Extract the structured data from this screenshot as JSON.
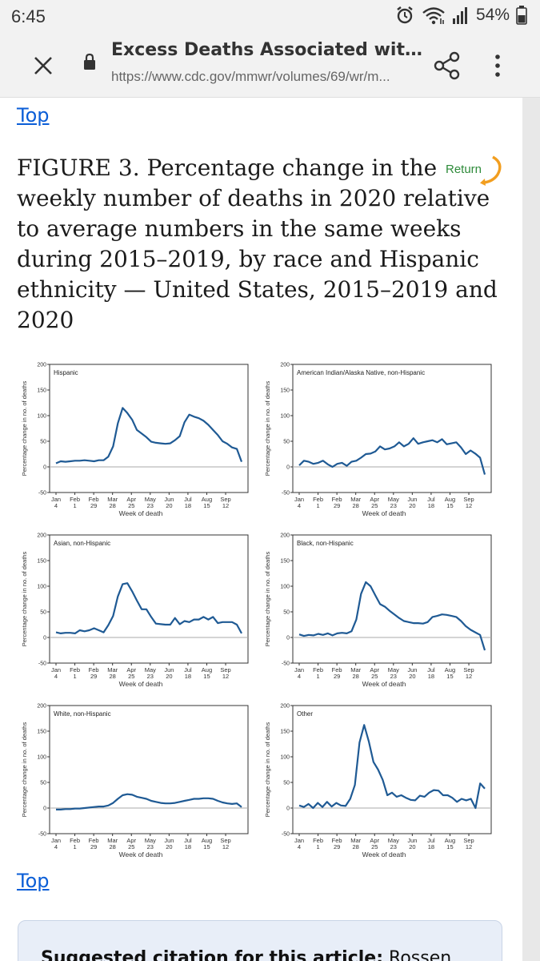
{
  "status_bar": {
    "time": "6:45",
    "battery": "54%",
    "icons": [
      "alarm-icon",
      "wifi-icon",
      "signal-icon",
      "battery-icon"
    ]
  },
  "browser": {
    "page_title": "Excess Deaths Associated with C...",
    "url": "https://www.cdc.gov/mmwr/volumes/69/wr/m...",
    "icons": [
      "close-icon",
      "lock-icon",
      "share-icon",
      "more-vert-icon"
    ]
  },
  "article": {
    "top_link": "Top",
    "bottom_top_link": "Top",
    "figure_title": "FIGURE 3. Percentage change in the weekly number of deaths in 2020 relative to average numbers in the same weeks during 2015–2019, by race and Hispanic ethnicity — United States, 2015–2019 and 2020",
    "return_label": "Return",
    "citation_label": "Suggested citation for this article:",
    "citation_text": " Rossen"
  },
  "colors": {
    "line": "#1f5a94",
    "link": "#0b5ed7",
    "return_green": "#2e8b3a",
    "return_orange": "#f29e1f"
  },
  "chart_data": [
    {
      "type": "line",
      "panel_label": "Hispanic",
      "ylabel": "Percentage change in no. of deaths",
      "xlabel": "Week of death",
      "ylim": [
        -50,
        200
      ],
      "yticks": [
        "200",
        "150",
        "100",
        "50",
        "0",
        "-50"
      ],
      "xticks": [
        [
          "Jan",
          "4"
        ],
        [
          "Feb",
          "1"
        ],
        [
          "Feb",
          "29"
        ],
        [
          "Mar",
          "28"
        ],
        [
          "Apr",
          "25"
        ],
        [
          "May",
          "23"
        ],
        [
          "Jun",
          "20"
        ],
        [
          "Jul",
          "18"
        ],
        [
          "Aug",
          "15"
        ],
        [
          "Sep",
          "12"
        ]
      ],
      "series": [
        {
          "values": [
            7,
            11,
            10,
            11,
            12,
            12,
            13,
            12,
            11,
            13,
            13,
            20,
            40,
            85,
            115,
            105,
            92,
            72,
            65,
            58,
            49,
            47,
            46,
            45,
            46,
            52,
            60,
            87,
            102,
            98,
            95,
            90,
            82,
            72,
            62,
            50,
            45,
            38,
            35,
            10
          ]
        }
      ]
    },
    {
      "type": "line",
      "panel_label": "American Indian/Alaska Native, non-Hispanic",
      "ylabel": "Percentage change in no. of deaths",
      "xlabel": "Week of death",
      "ylim": [
        -50,
        200
      ],
      "yticks": [
        "200",
        "150",
        "100",
        "50",
        "0",
        "-50"
      ],
      "xticks": [
        [
          "Jan",
          "4"
        ],
        [
          "Feb",
          "1"
        ],
        [
          "Feb",
          "29"
        ],
        [
          "Mar",
          "28"
        ],
        [
          "Apr",
          "25"
        ],
        [
          "May",
          "23"
        ],
        [
          "Jun",
          "20"
        ],
        [
          "Jul",
          "18"
        ],
        [
          "Aug",
          "15"
        ],
        [
          "Sep",
          "12"
        ]
      ],
      "series": [
        {
          "values": [
            3,
            12,
            10,
            6,
            8,
            12,
            5,
            0,
            6,
            8,
            2,
            10,
            12,
            18,
            25,
            26,
            30,
            40,
            34,
            36,
            40,
            48,
            40,
            45,
            56,
            45,
            48,
            50,
            52,
            48,
            54,
            44,
            46,
            48,
            38,
            25,
            32,
            26,
            18,
            -15
          ]
        }
      ]
    },
    {
      "type": "line",
      "panel_label": "Asian, non-Hispanic",
      "ylabel": "Percentage change in no. of deaths",
      "xlabel": "Week of death",
      "ylim": [
        -50,
        200
      ],
      "yticks": [
        "200",
        "150",
        "100",
        "50",
        "0",
        "-50"
      ],
      "xticks": [
        [
          "Jan",
          "4"
        ],
        [
          "Feb",
          "1"
        ],
        [
          "Feb",
          "29"
        ],
        [
          "Mar",
          "28"
        ],
        [
          "Apr",
          "25"
        ],
        [
          "May",
          "23"
        ],
        [
          "Jun",
          "20"
        ],
        [
          "Jul",
          "18"
        ],
        [
          "Aug",
          "15"
        ],
        [
          "Sep",
          "12"
        ]
      ],
      "series": [
        {
          "values": [
            10,
            8,
            9,
            9,
            8,
            14,
            12,
            14,
            18,
            14,
            10,
            24,
            42,
            80,
            104,
            106,
            90,
            72,
            55,
            55,
            40,
            27,
            26,
            25,
            25,
            38,
            26,
            32,
            30,
            35,
            35,
            40,
            35,
            40,
            28,
            30,
            30,
            30,
            25,
            8
          ]
        }
      ]
    },
    {
      "type": "line",
      "panel_label": "Black, non-Hispanic",
      "ylabel": "Percentage change in no. of deaths",
      "xlabel": "Week of death",
      "ylim": [
        -50,
        200
      ],
      "yticks": [
        "200",
        "150",
        "100",
        "50",
        "0",
        "-50"
      ],
      "xticks": [
        [
          "Jan",
          "4"
        ],
        [
          "Feb",
          "1"
        ],
        [
          "Feb",
          "29"
        ],
        [
          "Mar",
          "28"
        ],
        [
          "Apr",
          "25"
        ],
        [
          "May",
          "23"
        ],
        [
          "Jun",
          "20"
        ],
        [
          "Jul",
          "18"
        ],
        [
          "Aug",
          "15"
        ],
        [
          "Sep",
          "12"
        ]
      ],
      "series": [
        {
          "values": [
            6,
            3,
            5,
            4,
            7,
            5,
            8,
            4,
            8,
            9,
            8,
            12,
            35,
            85,
            108,
            100,
            82,
            65,
            60,
            52,
            45,
            38,
            32,
            30,
            28,
            28,
            27,
            30,
            40,
            42,
            45,
            44,
            42,
            40,
            32,
            22,
            15,
            10,
            5,
            -25
          ]
        }
      ]
    },
    {
      "type": "line",
      "panel_label": "White, non-Hispanic",
      "ylabel": "Percentage change in no. of deaths",
      "xlabel": "Week of death",
      "ylim": [
        -50,
        200
      ],
      "yticks": [
        "200",
        "150",
        "100",
        "50",
        "0",
        "-50"
      ],
      "xticks": [
        [
          "Jan",
          "4"
        ],
        [
          "Feb",
          "1"
        ],
        [
          "Feb",
          "29"
        ],
        [
          "Mar",
          "28"
        ],
        [
          "Apr",
          "25"
        ],
        [
          "May",
          "23"
        ],
        [
          "Jun",
          "20"
        ],
        [
          "Jul",
          "18"
        ],
        [
          "Aug",
          "15"
        ],
        [
          "Sep",
          "12"
        ]
      ],
      "series": [
        {
          "values": [
            -3,
            -3,
            -2,
            -2,
            -1,
            -1,
            0,
            1,
            2,
            3,
            3,
            5,
            10,
            18,
            25,
            27,
            26,
            22,
            20,
            18,
            14,
            12,
            10,
            9,
            9,
            10,
            12,
            14,
            16,
            18,
            18,
            19,
            19,
            18,
            14,
            11,
            9,
            8,
            9,
            2
          ]
        }
      ]
    },
    {
      "type": "line",
      "panel_label": "Other",
      "ylabel": "Percentage change in no. of deaths",
      "xlabel": "Week of death",
      "ylim": [
        -50,
        200
      ],
      "yticks": [
        "200",
        "150",
        "100",
        "50",
        "0",
        "-50"
      ],
      "xticks": [
        [
          "Jan",
          "4"
        ],
        [
          "Feb",
          "1"
        ],
        [
          "Feb",
          "29"
        ],
        [
          "Mar",
          "28"
        ],
        [
          "Apr",
          "25"
        ],
        [
          "May",
          "23"
        ],
        [
          "Jun",
          "20"
        ],
        [
          "Jul",
          "18"
        ],
        [
          "Aug",
          "15"
        ],
        [
          "Sep",
          "12"
        ]
      ],
      "series": [
        {
          "values": [
            5,
            2,
            8,
            0,
            10,
            2,
            12,
            3,
            10,
            5,
            4,
            18,
            45,
            128,
            162,
            130,
            90,
            75,
            55,
            25,
            30,
            22,
            25,
            20,
            16,
            15,
            24,
            22,
            30,
            35,
            34,
            25,
            25,
            20,
            12,
            18,
            15,
            18,
            0,
            48,
            38
          ]
        }
      ]
    }
  ]
}
